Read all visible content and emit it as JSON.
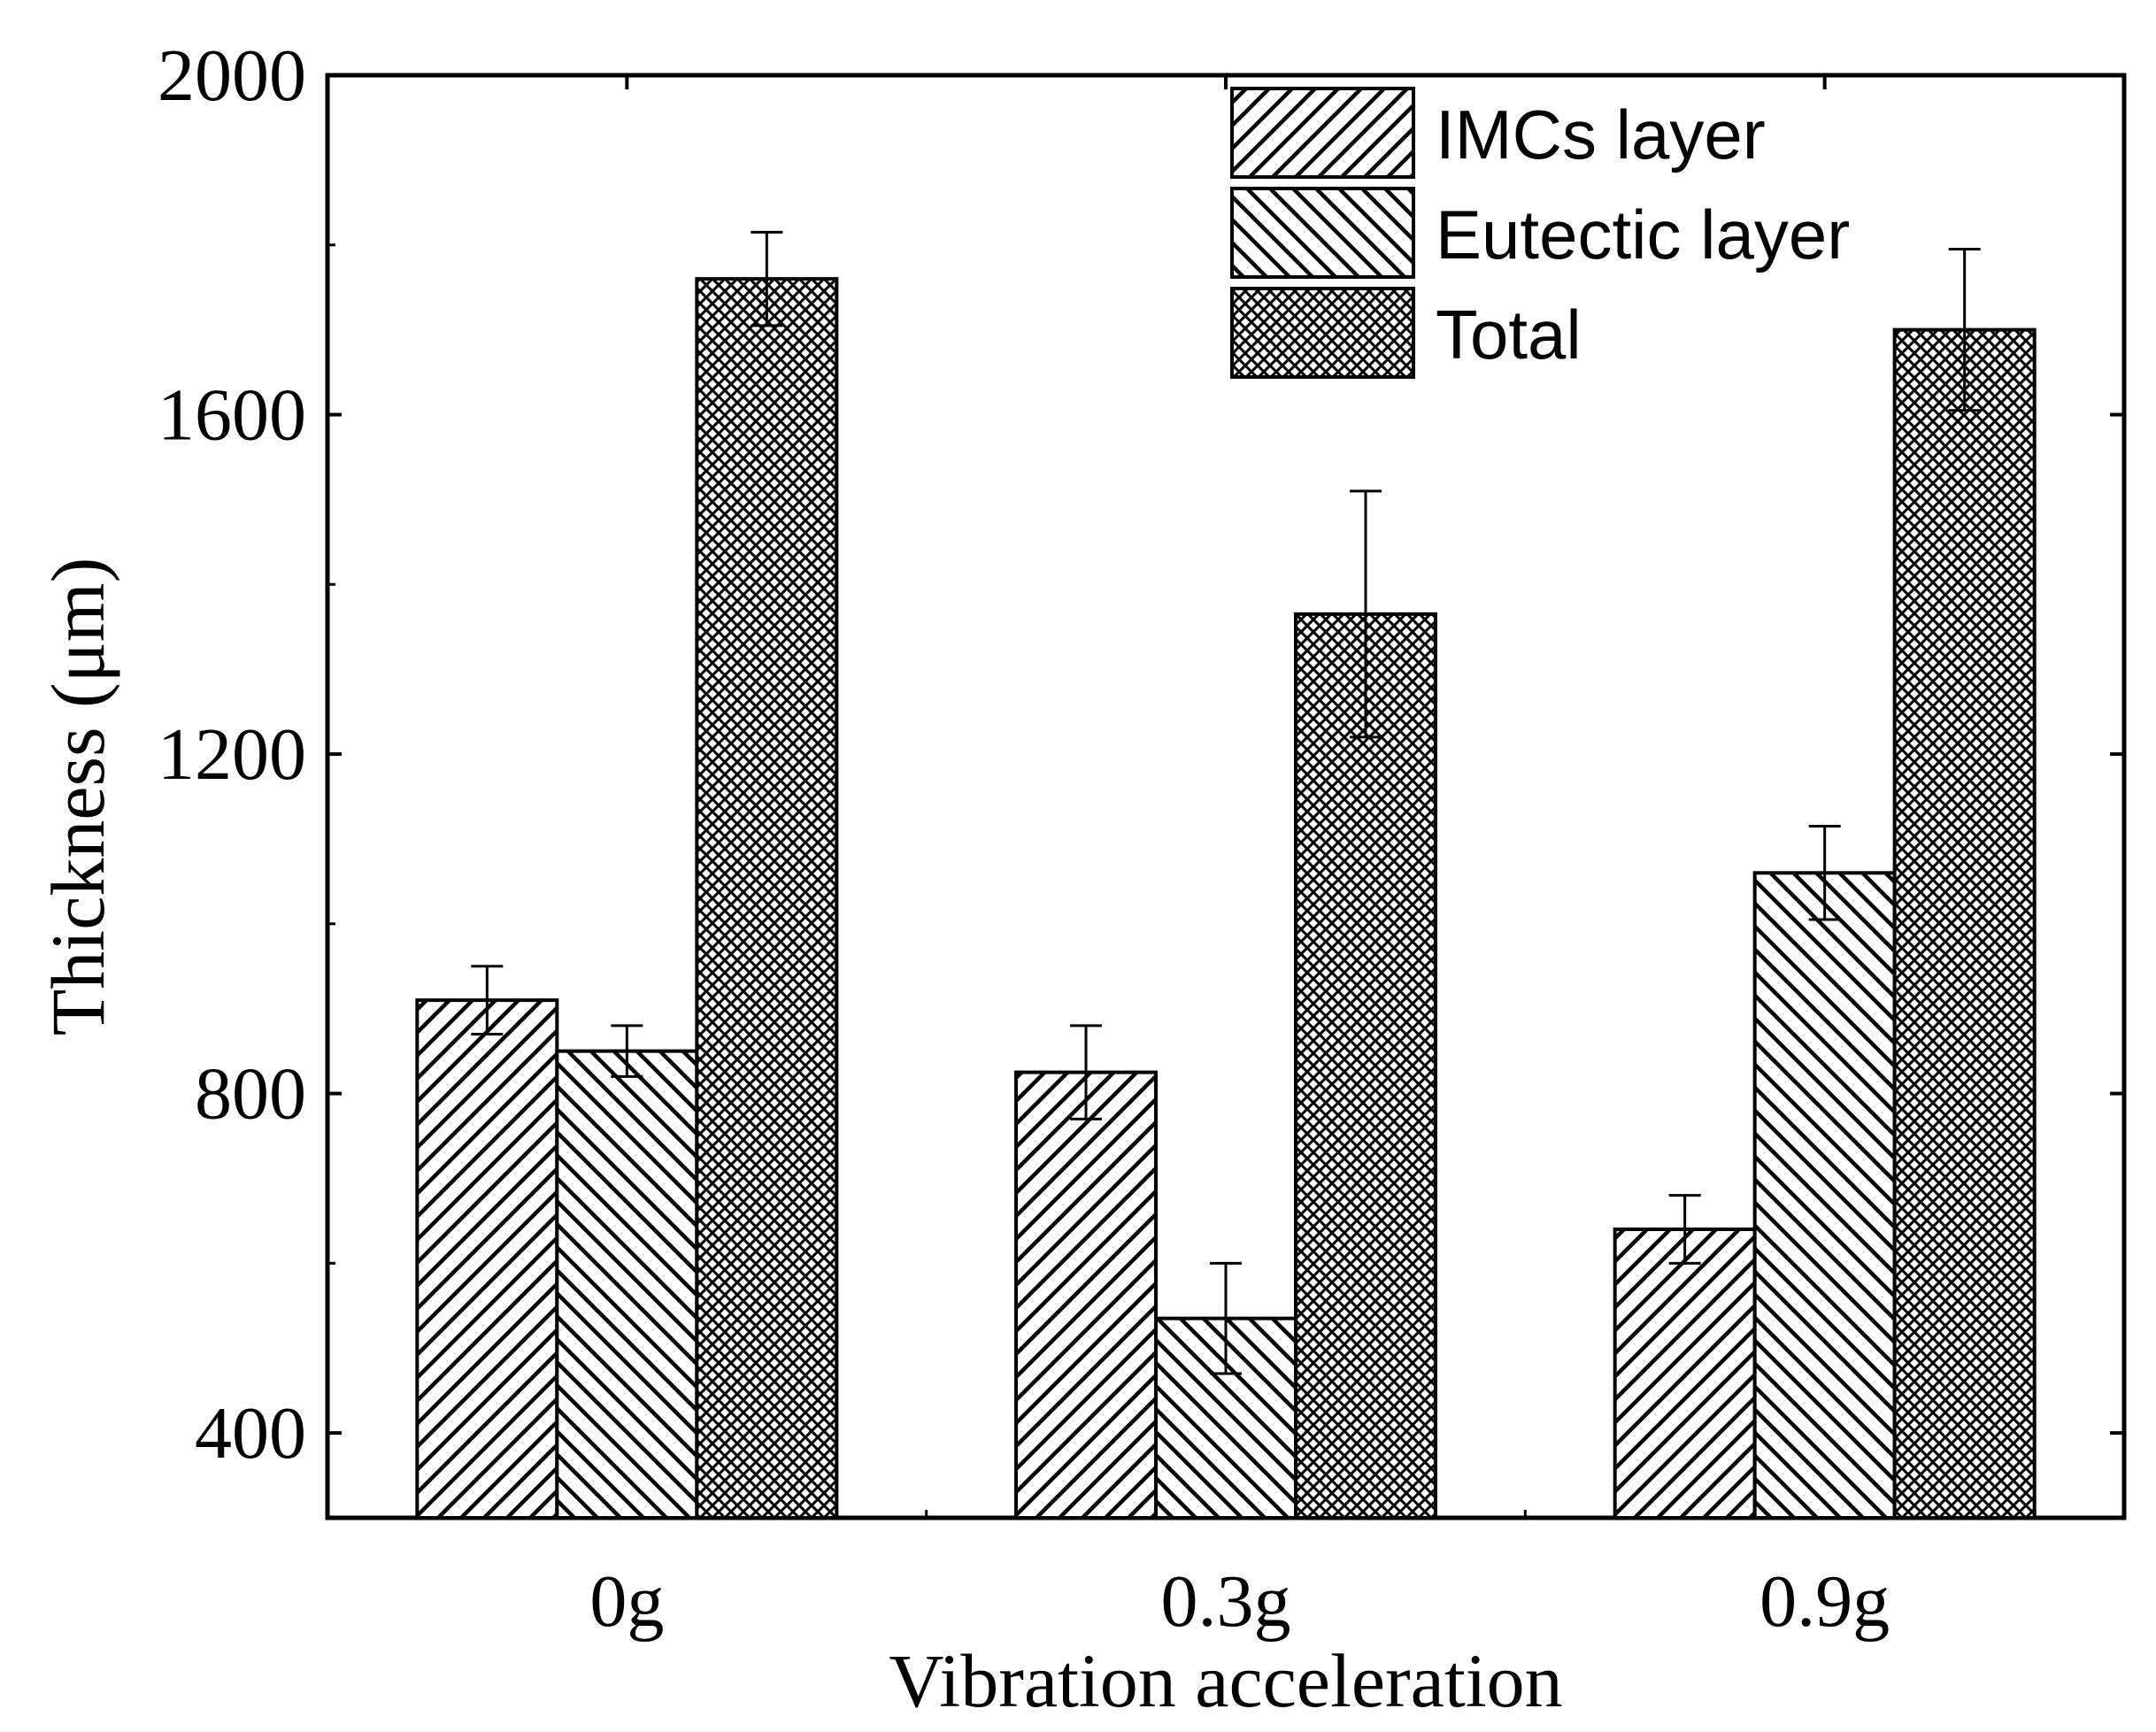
{
  "chart_data": {
    "type": "bar",
    "title": "",
    "xlabel": "Vibration acceleration",
    "ylabel": "Thickness (μm)",
    "categories": [
      "0g",
      "0.3g",
      "0.9g"
    ],
    "ylim": [
      300,
      2000
    ],
    "yticks": [
      400,
      800,
      1200,
      1600,
      2000
    ],
    "yticks_labels": [
      "400",
      "800",
      "1200",
      "1600",
      "2000"
    ],
    "grid": false,
    "legend_position": "top-right",
    "series": [
      {
        "name": "IMCs layer",
        "pattern": "hatch-forward",
        "values": [
          910,
          825,
          640
        ],
        "errors": [
          40,
          55,
          40
        ]
      },
      {
        "name": "Eutectic layer",
        "pattern": "hatch-backward",
        "values": [
          850,
          535,
          1060
        ],
        "errors": [
          30,
          65,
          55
        ]
      },
      {
        "name": "Total",
        "pattern": "crosshatch",
        "values": [
          1760,
          1365,
          1700
        ],
        "errors": [
          55,
          145,
          95
        ]
      }
    ],
    "colors": {
      "bar_stroke": "#000000",
      "bar_fill": "#ffffff",
      "hatch": "#000000"
    }
  }
}
